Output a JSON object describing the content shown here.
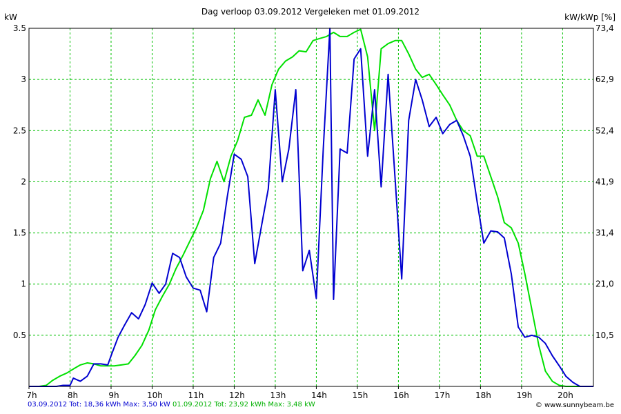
{
  "header": {
    "title": "Dag  verloop 03.09.2012   Vergeleken met 01.09.2012",
    "left_unit": "kW",
    "right_unit": "kW/kWp [%]"
  },
  "footer": {
    "series1": "03.09.2012 Tot: 18,36 kWh Max: 3,50 kW",
    "series2": "01.09.2012 Tot: 23,92 kWh Max: 3,48 kW",
    "credit": "© www.sunnybeam.be"
  },
  "colors": {
    "series1": "#0000d0",
    "series2": "#00e000",
    "grid": "#00c000",
    "axis": "#000000"
  },
  "chart_data": {
    "type": "line",
    "xlim": [
      7,
      20.75
    ],
    "ylim": [
      0,
      3.5
    ],
    "x_ticks": [
      7,
      8,
      9,
      10,
      11,
      12,
      13,
      14,
      15,
      16,
      17,
      18,
      19,
      20
    ],
    "x_tick_labels": [
      "7h",
      "8h",
      "9h",
      "10h",
      "11h",
      "12h",
      "13h",
      "14h",
      "15h",
      "16h",
      "17h",
      "18h",
      "19h",
      "20h"
    ],
    "y_ticks": [
      0.5,
      1,
      1.5,
      2,
      2.5,
      3,
      3.5
    ],
    "y_tick_labels": [
      "0.5",
      "1",
      "1.5",
      "2",
      "2.5",
      "3",
      "3.5"
    ],
    "y2_tick_labels": [
      "10,5",
      "21,0",
      "31,4",
      "41,9",
      "52,4",
      "62,9",
      "73,4"
    ],
    "grid": true,
    "series": [
      {
        "name": "03.09.2012",
        "x": [
          7,
          7.33,
          7.5,
          7.67,
          7.83,
          8,
          8.08,
          8.25,
          8.42,
          8.58,
          8.75,
          8.92,
          9,
          9.17,
          9.33,
          9.5,
          9.67,
          9.83,
          10,
          10.17,
          10.33,
          10.5,
          10.67,
          10.83,
          11,
          11.17,
          11.33,
          11.5,
          11.67,
          11.83,
          12,
          12.17,
          12.33,
          12.5,
          12.67,
          12.83,
          13,
          13.17,
          13.33,
          13.5,
          13.67,
          13.83,
          14,
          14.17,
          14.33,
          14.42,
          14.58,
          14.75,
          14.92,
          15.08,
          15.25,
          15.42,
          15.58,
          15.75,
          15.92,
          16.08,
          16.25,
          16.42,
          16.58,
          16.75,
          16.92,
          17.08,
          17.25,
          17.42,
          17.58,
          17.75,
          17.92,
          18.08,
          18.25,
          18.42,
          18.58,
          18.75,
          18.92,
          19.08,
          19.25,
          19.42,
          19.58,
          19.75,
          19.92,
          20.08,
          20.25,
          20.42,
          20.58,
          20.75
        ],
        "values": [
          0,
          0,
          0,
          0,
          0.01,
          0.01,
          0.08,
          0.05,
          0.1,
          0.22,
          0.22,
          0.21,
          0.3,
          0.48,
          0.6,
          0.72,
          0.66,
          0.8,
          1.01,
          0.91,
          1.0,
          1.3,
          1.26,
          1.07,
          0.96,
          0.94,
          0.73,
          1.26,
          1.4,
          1.85,
          2.27,
          2.22,
          2.05,
          1.2,
          1.58,
          1.93,
          2.9,
          2.0,
          2.32,
          2.9,
          1.13,
          1.33,
          0.86,
          2.32,
          3.5,
          0.85,
          2.32,
          2.28,
          3.2,
          3.3,
          2.25,
          2.9,
          1.95,
          3.05,
          2.02,
          1.05,
          2.6,
          3.0,
          2.8,
          2.54,
          2.63,
          2.47,
          2.56,
          2.6,
          2.45,
          2.25,
          1.8,
          1.4,
          1.52,
          1.51,
          1.45,
          1.1,
          0.58,
          0.48,
          0.5,
          0.48,
          0.42,
          0.3,
          0.2,
          0.1,
          0.04,
          0,
          0,
          0
        ]
      },
      {
        "name": "01.09.2012",
        "x": [
          7,
          7.25,
          7.42,
          7.58,
          7.75,
          7.92,
          8.08,
          8.25,
          8.42,
          8.58,
          8.75,
          8.92,
          9.08,
          9.25,
          9.42,
          9.58,
          9.75,
          9.92,
          10.08,
          10.25,
          10.42,
          10.58,
          10.75,
          10.92,
          11.08,
          11.25,
          11.42,
          11.58,
          11.75,
          11.92,
          12.08,
          12.25,
          12.42,
          12.58,
          12.75,
          12.92,
          13.08,
          13.25,
          13.42,
          13.58,
          13.75,
          13.92,
          14.08,
          14.25,
          14.42,
          14.58,
          14.75,
          14.92,
          15.08,
          15.25,
          15.42,
          15.58,
          15.75,
          15.92,
          16.08,
          16.25,
          16.42,
          16.58,
          16.75,
          16.92,
          17.08,
          17.25,
          17.42,
          17.58,
          17.75,
          17.92,
          18.08,
          18.25,
          18.42,
          18.58,
          18.75,
          18.92,
          19.08,
          19.25,
          19.42,
          19.58,
          19.75,
          19.92,
          20.08,
          20.25,
          20.42,
          20.58,
          20.75
        ],
        "values": [
          0,
          0,
          0.01,
          0.06,
          0.1,
          0.13,
          0.17,
          0.21,
          0.23,
          0.22,
          0.2,
          0.2,
          0.2,
          0.21,
          0.22,
          0.3,
          0.4,
          0.55,
          0.75,
          0.88,
          1.0,
          1.15,
          1.28,
          1.42,
          1.55,
          1.72,
          2.03,
          2.2,
          2.0,
          2.25,
          2.4,
          2.63,
          2.65,
          2.8,
          2.65,
          2.95,
          3.1,
          3.18,
          3.22,
          3.28,
          3.27,
          3.38,
          3.4,
          3.42,
          3.46,
          3.42,
          3.42,
          3.46,
          3.49,
          3.22,
          2.5,
          3.3,
          3.35,
          3.38,
          3.38,
          3.25,
          3.1,
          3.02,
          3.05,
          2.95,
          2.85,
          2.75,
          2.6,
          2.5,
          2.45,
          2.25,
          2.25,
          2.05,
          1.85,
          1.6,
          1.55,
          1.4,
          1.1,
          0.75,
          0.4,
          0.15,
          0.05,
          0.01,
          0,
          0,
          0,
          0,
          0
        ]
      }
    ]
  }
}
